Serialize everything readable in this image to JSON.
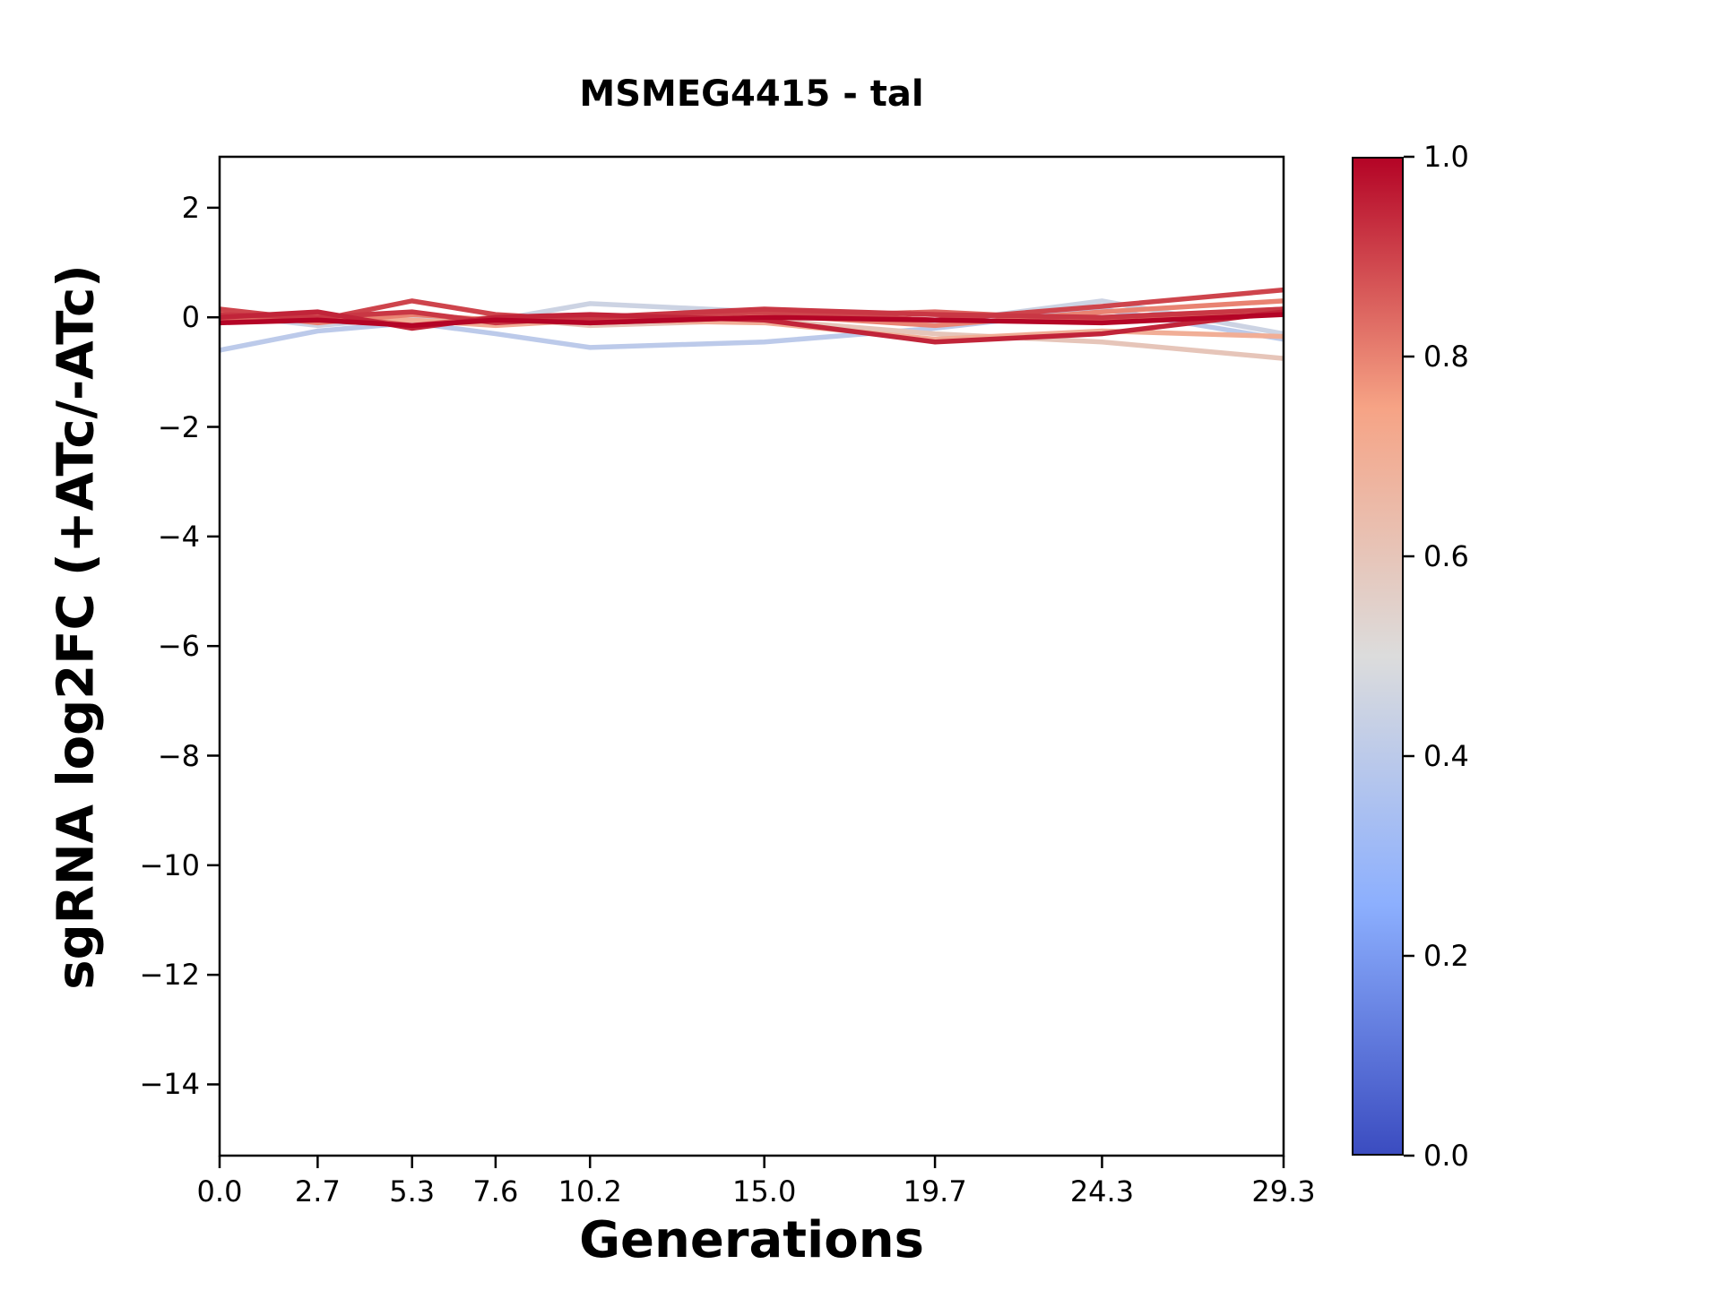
{
  "chart_data": {
    "type": "line",
    "title": "MSMEG4415 - tal",
    "xlabel": "Generations",
    "ylabel": "sgRNA log2FC (+ATc/-ATc)",
    "grid": false,
    "legend": "none",
    "x": [
      0.0,
      2.7,
      5.3,
      7.6,
      10.2,
      15.0,
      19.7,
      24.3,
      29.3
    ],
    "xlim": [
      0.0,
      29.3
    ],
    "ylim": [
      -15.3,
      2.93
    ],
    "xtick_values": [
      0.0,
      2.7,
      5.3,
      7.6,
      10.2,
      15.0,
      19.7,
      24.3,
      29.3
    ],
    "xtick_labels": [
      "0.0",
      "2.7",
      "5.3",
      "7.6",
      "10.2",
      "15.0",
      "19.7",
      "24.3",
      "29.3"
    ],
    "ytick_values": [
      2,
      0,
      -2,
      -4,
      -6,
      -8,
      -10,
      -12,
      -14
    ],
    "ytick_labels": [
      "2",
      "0",
      "−2",
      "−4",
      "−6",
      "−8",
      "−10",
      "−12",
      "−14"
    ],
    "series": [
      {
        "color_value": 0.4,
        "y": [
          -0.6,
          -0.25,
          -0.1,
          -0.3,
          -0.55,
          -0.45,
          -0.2,
          0.15,
          -0.4
        ]
      },
      {
        "color_value": 0.45,
        "y": [
          0.05,
          -0.15,
          0.0,
          -0.05,
          0.25,
          0.1,
          -0.1,
          0.3,
          -0.3
        ]
      },
      {
        "color_value": 0.6,
        "y": [
          0.0,
          -0.05,
          -0.1,
          0.0,
          -0.15,
          -0.05,
          -0.3,
          -0.45,
          -0.75
        ]
      },
      {
        "color_value": 0.7,
        "y": [
          -0.1,
          0.0,
          -0.05,
          -0.15,
          -0.05,
          -0.1,
          -0.4,
          -0.25,
          -0.35
        ]
      },
      {
        "color_value": 0.8,
        "y": [
          0.1,
          -0.1,
          0.05,
          -0.05,
          0.0,
          0.05,
          -0.15,
          0.1,
          0.3
        ]
      },
      {
        "color_value": 0.85,
        "y": [
          -0.05,
          0.05,
          -0.15,
          0.0,
          -0.1,
          0.0,
          0.1,
          -0.05,
          0.15
        ]
      },
      {
        "color_value": 0.9,
        "y": [
          0.15,
          -0.05,
          0.3,
          0.05,
          -0.05,
          0.1,
          -0.05,
          0.2,
          0.5
        ]
      },
      {
        "color_value": 0.92,
        "y": [
          0.05,
          0.0,
          0.1,
          -0.1,
          0.0,
          0.15,
          0.05,
          0.0,
          0.15
        ]
      },
      {
        "color_value": 0.95,
        "y": [
          0.0,
          0.1,
          -0.2,
          0.0,
          0.05,
          -0.05,
          -0.45,
          -0.3,
          0.1
        ]
      },
      {
        "color_value": 1.0,
        "y": [
          -0.1,
          -0.05,
          -0.15,
          -0.05,
          -0.1,
          0.0,
          -0.05,
          -0.1,
          0.05
        ]
      }
    ],
    "colorbar": {
      "tick_values": [
        1.0,
        0.8,
        0.6,
        0.4,
        0.2,
        0.0
      ],
      "tick_labels": [
        "1.0",
        "0.8",
        "0.6",
        "0.4",
        "0.2",
        "0.0"
      ],
      "colormap": "coolwarm",
      "colormap_anchors": [
        {
          "t": 0.0,
          "hex": "#3b4cc0"
        },
        {
          "t": 0.25,
          "hex": "#8caffe"
        },
        {
          "t": 0.5,
          "hex": "#dcdcdc"
        },
        {
          "t": 0.75,
          "hex": "#f6a385"
        },
        {
          "t": 1.0,
          "hex": "#b40426"
        }
      ]
    },
    "axis_color": "#000000",
    "background_color": "#ffffff"
  }
}
